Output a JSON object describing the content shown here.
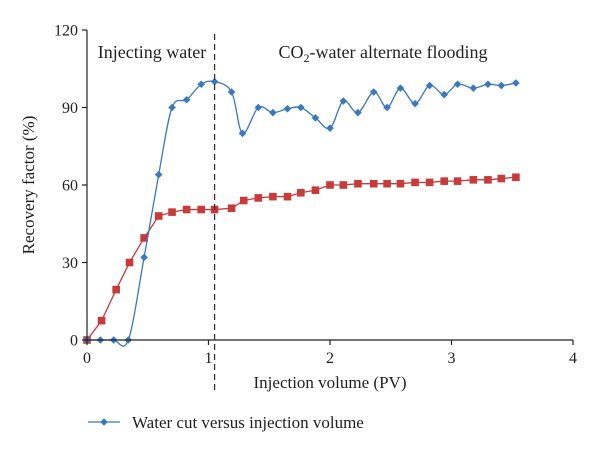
{
  "chart_data": {
    "type": "line",
    "xlabel": "Injection volume (PV)",
    "ylabel": "Recovery factor (%)",
    "xlim": [
      0,
      4
    ],
    "ylim": [
      0,
      120
    ],
    "x_ticks": [
      "0",
      "1",
      "2",
      "3",
      "4"
    ],
    "y_ticks": [
      "0",
      "30",
      "60",
      "90",
      "120"
    ],
    "grid": false,
    "legend": "bottom",
    "divider_x": 1.05,
    "annotations": {
      "left": "Injecting water",
      "right_prefix": "CO",
      "right_subscript": "2",
      "right_suffix": "-water alternate flooding"
    },
    "series": [
      {
        "name": "Water cut versus injection volume",
        "color": "#3a78c0",
        "marker": "diamond",
        "smooth": true,
        "x": [
          0,
          0.11,
          0.22,
          0.34,
          0.47,
          0.59,
          0.7,
          0.82,
          0.94,
          1.05,
          1.19,
          1.28,
          1.41,
          1.53,
          1.65,
          1.76,
          1.88,
          2.0,
          2.11,
          2.23,
          2.36,
          2.47,
          2.58,
          2.7,
          2.82,
          2.94,
          3.05,
          3.18,
          3.3,
          3.41,
          3.53
        ],
        "values": [
          0,
          0,
          0,
          0,
          32,
          64,
          90,
          93,
          99,
          100,
          96,
          80,
          90,
          88,
          89.5,
          90,
          86,
          82,
          92.5,
          88,
          96,
          90,
          97.5,
          91.5,
          98.5,
          95,
          99,
          97.5,
          99,
          98.5,
          99.5
        ]
      },
      {
        "name": "",
        "color": "#c93a3a",
        "marker": "square",
        "smooth": false,
        "x": [
          0,
          0.12,
          0.24,
          0.35,
          0.47,
          0.59,
          0.7,
          0.82,
          0.94,
          1.05,
          1.19,
          1.29,
          1.41,
          1.53,
          1.65,
          1.76,
          1.88,
          2.0,
          2.11,
          2.23,
          2.36,
          2.47,
          2.58,
          2.7,
          2.82,
          2.94,
          3.05,
          3.18,
          3.3,
          3.41,
          3.53
        ],
        "values": [
          0,
          7.5,
          19.5,
          30,
          39.5,
          48,
          49.5,
          50.5,
          50.5,
          50.5,
          51,
          54,
          55,
          55.5,
          55.5,
          57,
          58,
          60,
          60,
          60.5,
          60.5,
          60.5,
          60.5,
          61,
          61,
          61.5,
          61.5,
          62,
          62,
          62.5,
          63
        ]
      }
    ]
  }
}
